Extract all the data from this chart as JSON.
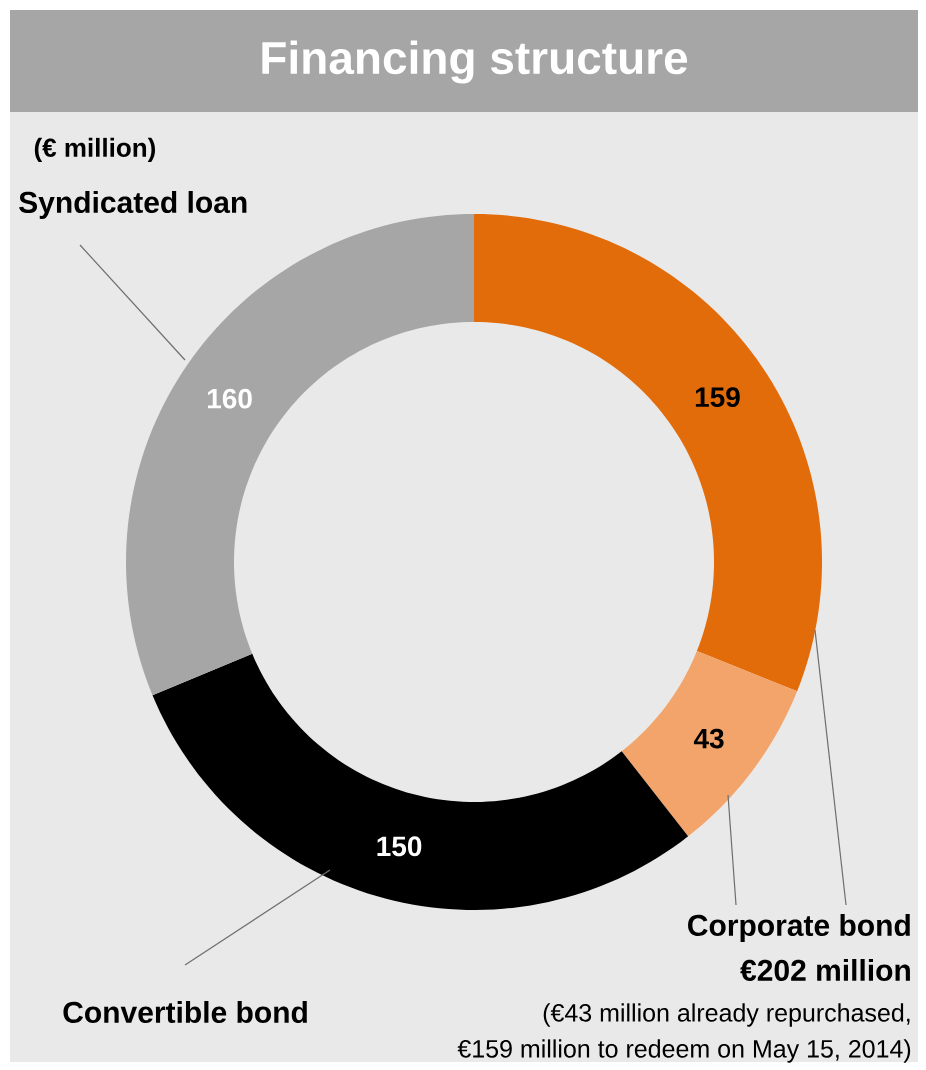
{
  "chart_data": {
    "type": "donut",
    "title": "Financing structure",
    "subtitle": "(€ million)",
    "categories": [
      "Corporate bond",
      null,
      "Convertible bond",
      "Syndicated loan"
    ],
    "values": [
      159,
      43,
      150,
      160
    ],
    "colors": [
      "#e36c0a",
      "#f2a46a",
      "#000000",
      "#a6a6a6"
    ],
    "data_labels": true,
    "annotations": [
      "€202 million",
      "(€43 million already repurchased,",
      "€159 million to redeem on May 15, 2014)"
    ]
  }
}
